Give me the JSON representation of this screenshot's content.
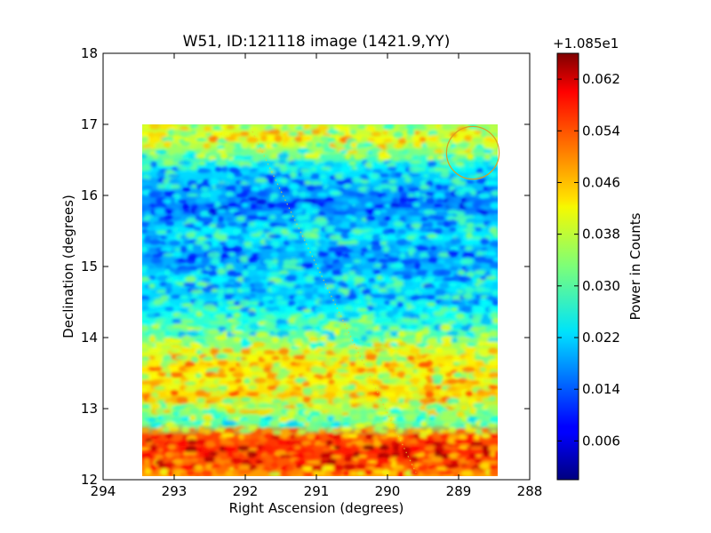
{
  "chart_data": {
    "type": "heatmap",
    "title": "W51, ID:121118 image (1421.9,YY)",
    "xlabel": "Right Ascension (degrees)",
    "ylabel": "Declination (degrees)",
    "xlim": [
      294,
      288
    ],
    "ylim": [
      12,
      18
    ],
    "x_ticks": [
      "294",
      "293",
      "292",
      "291",
      "290",
      "289",
      "288"
    ],
    "y_ticks": [
      "12",
      "13",
      "14",
      "15",
      "16",
      "17",
      "18"
    ],
    "data_extent": {
      "ra": [
        293.45,
        288.45
      ],
      "dec": [
        12.05,
        17.0
      ]
    },
    "colormap": "jet",
    "colorbar": {
      "label": "Power in Counts",
      "offset_label": "+1.085e1",
      "range": [
        0.0,
        0.066
      ],
      "ticks": [
        "0.006",
        "0.014",
        "0.022",
        "0.030",
        "0.038",
        "0.046",
        "0.054",
        "0.062"
      ]
    },
    "row_profile": [
      {
        "dec": 17.0,
        "value": 0.036
      },
      {
        "dec": 16.8,
        "value": 0.04
      },
      {
        "dec": 16.6,
        "value": 0.033
      },
      {
        "dec": 16.4,
        "value": 0.024
      },
      {
        "dec": 16.2,
        "value": 0.021
      },
      {
        "dec": 16.0,
        "value": 0.018
      },
      {
        "dec": 15.8,
        "value": 0.016
      },
      {
        "dec": 15.6,
        "value": 0.022
      },
      {
        "dec": 15.4,
        "value": 0.024
      },
      {
        "dec": 15.2,
        "value": 0.019
      },
      {
        "dec": 15.0,
        "value": 0.02
      },
      {
        "dec": 14.8,
        "value": 0.024
      },
      {
        "dec": 14.6,
        "value": 0.021
      },
      {
        "dec": 14.4,
        "value": 0.025
      },
      {
        "dec": 14.2,
        "value": 0.028
      },
      {
        "dec": 14.0,
        "value": 0.031
      },
      {
        "dec": 13.8,
        "value": 0.039
      },
      {
        "dec": 13.6,
        "value": 0.043
      },
      {
        "dec": 13.4,
        "value": 0.04
      },
      {
        "dec": 13.2,
        "value": 0.044
      },
      {
        "dec": 13.0,
        "value": 0.036
      },
      {
        "dec": 12.8,
        "value": 0.031
      },
      {
        "dec": 12.6,
        "value": 0.052
      },
      {
        "dec": 12.4,
        "value": 0.056
      },
      {
        "dec": 12.2,
        "value": 0.052
      },
      {
        "dec": 12.05,
        "value": 0.047
      }
    ],
    "annotations": [
      {
        "type": "circle",
        "ra": 288.8,
        "dec": 16.6,
        "radius_deg": 0.37,
        "color": "#d9a020"
      },
      {
        "type": "dotted-line",
        "from": {
          "ra": 291.9,
          "dec": 16.9
        },
        "to": {
          "ra": 289.6,
          "dec": 12.1
        },
        "color": "#e8d030"
      }
    ],
    "grid": false
  }
}
